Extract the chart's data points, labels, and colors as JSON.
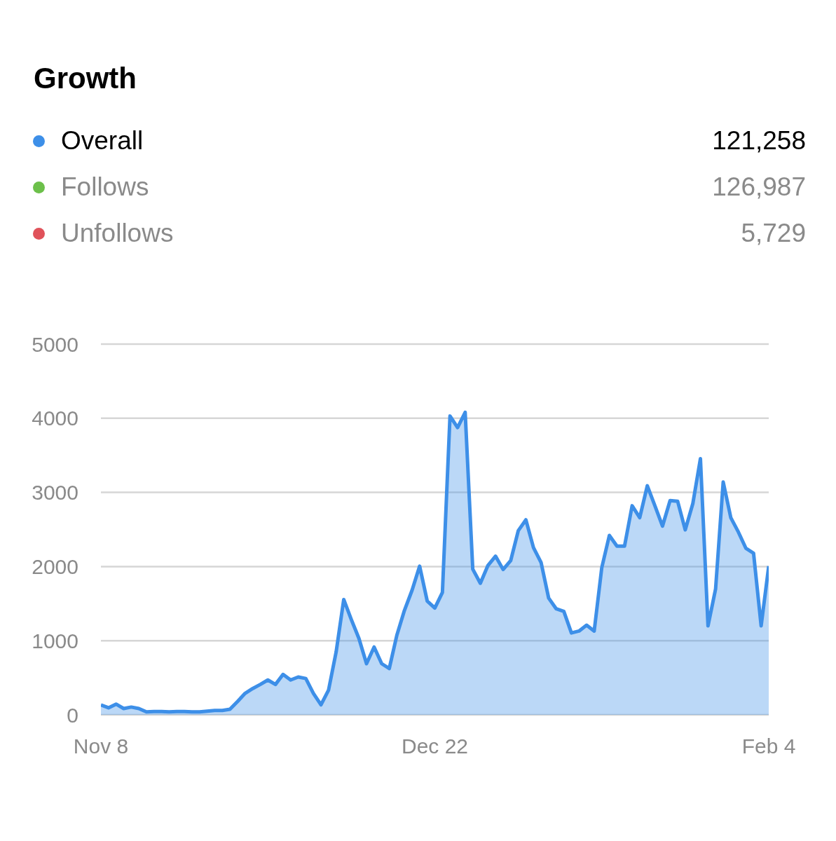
{
  "chart_data": {
    "type": "area",
    "title": "Growth",
    "legend": "top",
    "grid": "y",
    "ylim": [
      0,
      5000
    ],
    "yticks": [
      0,
      1000,
      2000,
      3000,
      4000,
      5000
    ],
    "categories": [
      "Nov 8",
      null,
      null,
      null,
      null,
      null,
      null,
      null,
      null,
      null,
      null,
      null,
      null,
      null,
      null,
      null,
      null,
      null,
      null,
      null,
      null,
      null,
      null,
      null,
      null,
      null,
      null,
      null,
      null,
      null,
      null,
      null,
      null,
      null,
      null,
      null,
      null,
      null,
      null,
      null,
      null,
      null,
      null,
      null,
      "Dec 22",
      null,
      null,
      null,
      null,
      null,
      null,
      null,
      null,
      null,
      null,
      null,
      null,
      null,
      null,
      null,
      null,
      null,
      null,
      null,
      null,
      null,
      null,
      null,
      null,
      null,
      null,
      null,
      null,
      null,
      null,
      null,
      null,
      null,
      null,
      null,
      null,
      null,
      null,
      null,
      null,
      null,
      null,
      null,
      "Feb 4"
    ],
    "series": [
      {
        "name": "Overall",
        "color": "#3d8fe8",
        "values": [
          135,
          95,
          145,
          85,
          105,
          85,
          40,
          45,
          45,
          40,
          45,
          45,
          40,
          40,
          50,
          60,
          60,
          75,
          180,
          290,
          355,
          410,
          470,
          410,
          545,
          470,
          510,
          490,
          290,
          135,
          335,
          850,
          1555,
          1285,
          1030,
          690,
          915,
          690,
          625,
          1075,
          1410,
          1680,
          2005,
          1535,
          1440,
          1650,
          4030,
          3875,
          4080,
          1965,
          1775,
          2015,
          2140,
          1960,
          2080,
          2485,
          2630,
          2255,
          2055,
          1575,
          1430,
          1395,
          1105,
          1130,
          1210,
          1130,
          1985,
          2420,
          2275,
          2275,
          2820,
          2660,
          3090,
          2820,
          2545,
          2890,
          2880,
          2495,
          2850,
          3455,
          1200,
          1700,
          3140,
          2660,
          2465,
          2245,
          2180,
          1200,
          2005
        ]
      },
      {
        "name": "Follows",
        "color": "#6cc04a",
        "values": [
          null,
          null,
          null,
          null,
          null,
          null,
          null,
          null,
          null,
          null,
          null,
          null,
          null,
          null,
          null,
          null,
          null,
          null,
          null,
          null,
          null,
          null,
          null,
          null,
          null,
          null,
          null,
          null,
          null,
          null,
          null,
          null,
          null,
          null,
          null,
          null,
          null,
          null,
          null,
          null,
          null,
          null,
          null,
          null,
          null,
          null,
          null,
          null,
          null,
          null,
          null,
          null,
          null,
          null,
          null,
          null,
          null,
          null,
          null,
          null,
          null,
          null,
          null,
          null,
          null,
          null,
          null,
          null,
          null,
          null,
          null,
          null,
          null,
          null,
          null,
          null,
          null,
          null,
          null,
          null,
          null,
          null,
          null,
          null,
          null,
          null,
          null,
          null,
          null
        ]
      },
      {
        "name": "Unfollows",
        "color": "#e0525a",
        "values": [
          null,
          null,
          null,
          null,
          null,
          null,
          null,
          null,
          null,
          null,
          null,
          null,
          null,
          null,
          null,
          null,
          null,
          null,
          null,
          null,
          null,
          null,
          null,
          null,
          null,
          null,
          null,
          null,
          null,
          null,
          null,
          null,
          null,
          null,
          null,
          null,
          null,
          null,
          null,
          null,
          null,
          null,
          null,
          null,
          null,
          null,
          null,
          null,
          null,
          null,
          null,
          null,
          null,
          null,
          null,
          null,
          null,
          null,
          null,
          null,
          null,
          null,
          null,
          null,
          null,
          null,
          null,
          null,
          null,
          null,
          null,
          null,
          null,
          null,
          null,
          null,
          null,
          null,
          null,
          null,
          null,
          null,
          null,
          null,
          null,
          null,
          null,
          null,
          null
        ]
      }
    ],
    "annotations": [
      "121,258",
      "126,987",
      "5,729"
    ]
  }
}
